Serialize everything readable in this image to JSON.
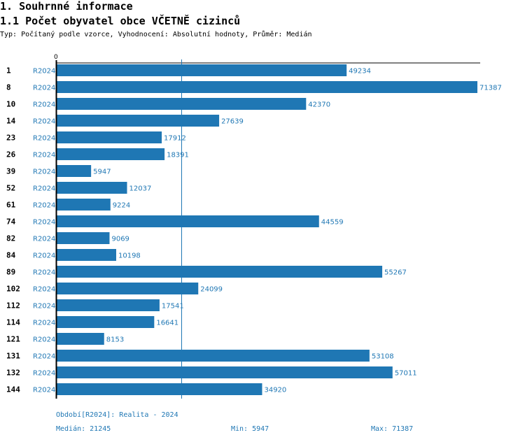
{
  "header": {
    "section_title": "1. Souhrnné informace",
    "chart_title": "1.1 Počet obyvatel obce VČETNĚ cizinců",
    "subtitle": "Typ: Počítaný podle vzorce, Vyhodnocení: Absolutní hodnoty, Průměr: Medián"
  },
  "colors": {
    "bar": "#1f77b4",
    "text_accent": "#1f77b4",
    "axis": "#000000"
  },
  "chart_data": {
    "type": "bar",
    "orientation": "horizontal",
    "title": "1.1 Počet obyvatel obce VČETNĚ cizinců",
    "xlabel": "",
    "ylabel": "",
    "x_tick_labels": [
      "0"
    ],
    "categories": [
      "1",
      "8",
      "10",
      "14",
      "23",
      "26",
      "39",
      "52",
      "61",
      "74",
      "82",
      "84",
      "89",
      "102",
      "112",
      "114",
      "121",
      "131",
      "132",
      "144"
    ],
    "series": [
      {
        "name": "R2024",
        "values": [
          49234,
          71387,
          42370,
          27639,
          17912,
          18391,
          5947,
          12037,
          9224,
          44559,
          9069,
          10198,
          55267,
          24099,
          17541,
          16641,
          8153,
          53108,
          57011,
          34920
        ]
      }
    ],
    "reference_line": {
      "label": "Medián",
      "value": 21245
    },
    "xlim": [
      0,
      72000
    ],
    "grid": false,
    "legend": "none"
  },
  "footer": {
    "period": "Období[R2024]: Realita - 2024",
    "median": "Medián: 21245",
    "min": "Min: 5947",
    "max": "Max: 71387"
  }
}
